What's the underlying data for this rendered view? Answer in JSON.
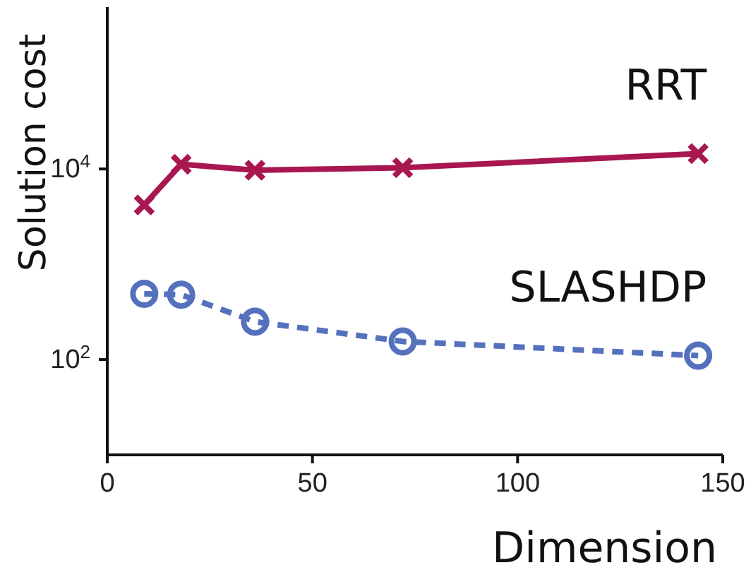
{
  "chart_data": {
    "type": "line",
    "xlabel": "Dimension",
    "ylabel": "Solution cost",
    "x": [
      9,
      18,
      36,
      72,
      144
    ],
    "series": [
      {
        "name": "RRT",
        "color": "#a8174f",
        "values": [
          4200,
          11200,
          9700,
          10300,
          14500
        ],
        "marker": "cross",
        "line_style": "solid"
      },
      {
        "name": "SLASHDP",
        "color": "#5570bd",
        "values": [
          490,
          480,
          250,
          155,
          110
        ],
        "marker": "circle",
        "line_style": "dashed"
      }
    ],
    "xlim": [
      0,
      150
    ],
    "xticks": [
      0,
      50,
      100,
      150
    ],
    "log": "y",
    "ylim": [
      10,
      500000
    ],
    "yticks": [
      {
        "value": 100,
        "label": "10$^{2}$"
      },
      {
        "value": 10000,
        "label": "10$^{4}$"
      }
    ],
    "grid": false
  }
}
